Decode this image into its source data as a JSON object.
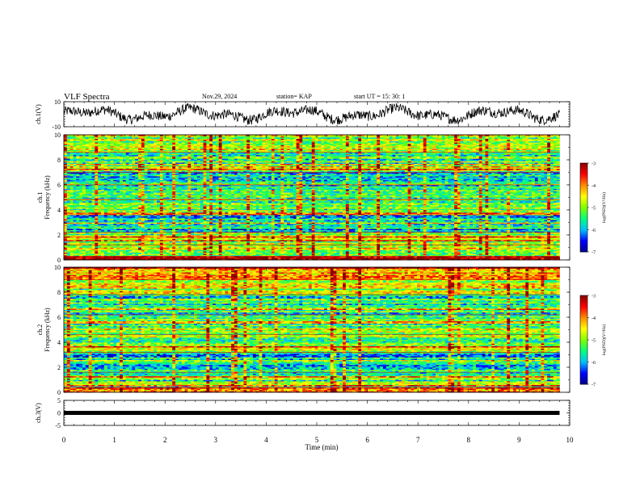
{
  "header": {
    "title": "VLF Spectra",
    "date": "Nov.29, 2024",
    "station": "station= KAP",
    "start": "start  UT =   15: 30: 1"
  },
  "chart_data": [
    {
      "type": "line",
      "panel": "ch1_waveform",
      "ylabel": "ch.1(V)",
      "ylim": [
        -10,
        10
      ],
      "yticks": [
        "10",
        "-10"
      ],
      "xlim": [
        0,
        9.8
      ],
      "description_values": {
        "mean": 0,
        "amplitude_range": [
          -7,
          7
        ]
      }
    },
    {
      "type": "heatmap",
      "panel": "ch1_spectrogram",
      "ylabel": "ch.1 Frequency (kHz)",
      "ylim": [
        0,
        10
      ],
      "yticks": [
        "0",
        "2",
        "4",
        "6",
        "8",
        "10"
      ],
      "xlim": [
        0,
        9.8
      ],
      "colorbar": {
        "label": "log(PSD)(V²/Hz)",
        "range": [
          -7,
          -3
        ],
        "ticks": [
          "-3",
          "-4",
          "-5",
          "-6",
          "-7"
        ]
      },
      "bands_khz": [
        {
          "f0": 0.0,
          "f1": 0.3,
          "level": -3.6
        },
        {
          "f0": 0.3,
          "f1": 1.2,
          "level": -4.8
        },
        {
          "f0": 1.2,
          "f1": 2.2,
          "level": -5.0
        },
        {
          "f0": 2.2,
          "f1": 3.6,
          "level": -5.8
        },
        {
          "f0": 3.6,
          "f1": 4.8,
          "level": -5.2
        },
        {
          "f0": 4.8,
          "f1": 6.0,
          "level": -5.4
        },
        {
          "f0": 6.0,
          "f1": 7.0,
          "level": -5.9
        },
        {
          "f0": 7.0,
          "f1": 8.6,
          "level": -5.3
        },
        {
          "f0": 8.6,
          "f1": 10.0,
          "level": -4.9
        }
      ]
    },
    {
      "type": "heatmap",
      "panel": "ch2_spectrogram",
      "ylabel": "ch.2 Frequency (kHz)",
      "ylim": [
        0,
        10
      ],
      "yticks": [
        "0",
        "2",
        "4",
        "6",
        "8",
        "10"
      ],
      "xlim": [
        0,
        9.8
      ],
      "colorbar": {
        "label": "log(PSD)(V²/Hz)",
        "range": [
          -7,
          -3
        ],
        "ticks": [
          "-3",
          "-4",
          "-5",
          "-6",
          "-7"
        ]
      },
      "bands_khz": [
        {
          "f0": 0.0,
          "f1": 0.4,
          "level": -4.0
        },
        {
          "f0": 0.4,
          "f1": 1.6,
          "level": -5.3
        },
        {
          "f0": 1.6,
          "f1": 3.2,
          "level": -5.8
        },
        {
          "f0": 3.2,
          "f1": 4.6,
          "level": -5.1
        },
        {
          "f0": 4.6,
          "f1": 6.2,
          "level": -5.2
        },
        {
          "f0": 6.2,
          "f1": 7.8,
          "level": -5.4
        },
        {
          "f0": 7.8,
          "f1": 9.0,
          "level": -4.9
        },
        {
          "f0": 9.0,
          "f1": 10.0,
          "level": -4.2
        }
      ]
    },
    {
      "type": "line",
      "panel": "ch3_waveform",
      "ylabel": "ch.3(V)",
      "ylim": [
        -5,
        5
      ],
      "yticks": [
        "5",
        "0",
        "-5"
      ],
      "xlim": [
        0,
        9.8
      ],
      "level": 0
    }
  ],
  "xaxis": {
    "label": "Time  (min)",
    "ticks": [
      "0",
      "1",
      "2",
      "3",
      "4",
      "5",
      "6",
      "7",
      "8",
      "9",
      "10"
    ],
    "range": [
      0,
      10
    ]
  },
  "colors": {
    "spectro_cmap": [
      "#00008b",
      "#0000ff",
      "#00bfff",
      "#00ff7f",
      "#7fff00",
      "#ffff00",
      "#ff8c00",
      "#ff0000",
      "#8b0000"
    ]
  }
}
